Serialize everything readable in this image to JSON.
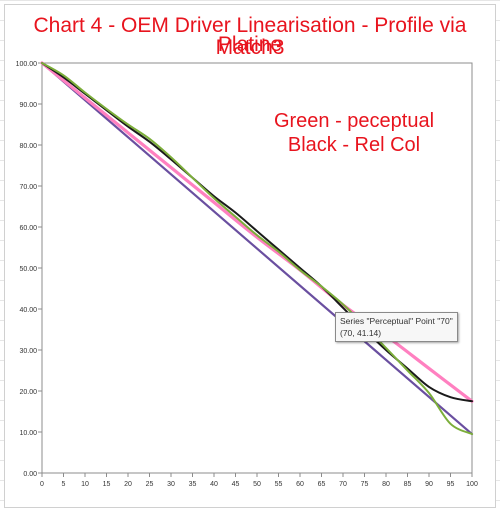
{
  "chart_data": {
    "type": "line",
    "title_line1": "Chart 4 - OEM Driver Linearisation - Profile via Match3",
    "title_line2": "Platine",
    "annotations": [
      "Green - peceptual",
      "Black - Rel Col"
    ],
    "xlim": [
      0,
      100
    ],
    "ylim": [
      0,
      100
    ],
    "x_ticks": [
      0,
      5,
      10,
      15,
      20,
      25,
      30,
      35,
      40,
      45,
      50,
      55,
      60,
      65,
      70,
      75,
      80,
      85,
      90,
      95,
      100
    ],
    "y_ticks": [
      "0.00",
      "10.00",
      "20.00",
      "30.00",
      "40.00",
      "50.00",
      "60.00",
      "70.00",
      "80.00",
      "90.00",
      "100.00"
    ],
    "grid": false,
    "series": [
      {
        "color": "#6a4fa0",
        "x": [
          0,
          100
        ],
        "y": [
          100,
          9.5
        ]
      },
      {
        "color": "#ff80c0",
        "x": [
          0,
          10,
          20,
          30,
          40,
          50,
          60,
          70,
          80,
          90,
          100
        ],
        "y": [
          100,
          91.5,
          83,
          74.5,
          66,
          57.5,
          49.5,
          41,
          33.5,
          25.5,
          17.5
        ]
      },
      {
        "color": "#1a1a1a",
        "x": [
          0,
          5,
          10,
          15,
          20,
          25,
          30,
          35,
          40,
          45,
          50,
          55,
          60,
          65,
          70,
          75,
          80,
          85,
          90,
          95,
          100
        ],
        "y": [
          100,
          96.5,
          92.5,
          88.5,
          84.5,
          80.8,
          76.5,
          72,
          67.5,
          63.5,
          59,
          54.5,
          50,
          45.5,
          40.3,
          35,
          30,
          25.5,
          21,
          18.5,
          17.5
        ]
      },
      {
        "name": "Perceptual",
        "color": "#7cae3a",
        "x": [
          0,
          5,
          10,
          15,
          20,
          25,
          30,
          35,
          40,
          45,
          50,
          55,
          60,
          65,
          70,
          75,
          80,
          85,
          90,
          95,
          100
        ],
        "y": [
          100,
          97,
          92.8,
          88.8,
          85,
          81.5,
          77,
          72,
          67,
          62.5,
          58,
          54,
          49.5,
          45.5,
          41.14,
          36,
          30.5,
          25,
          19.5,
          12,
          9.5
        ]
      }
    ]
  },
  "tooltip": {
    "line1": "Series \"Perceptual\" Point \"70\"",
    "line2": "(70, 41.14)"
  }
}
